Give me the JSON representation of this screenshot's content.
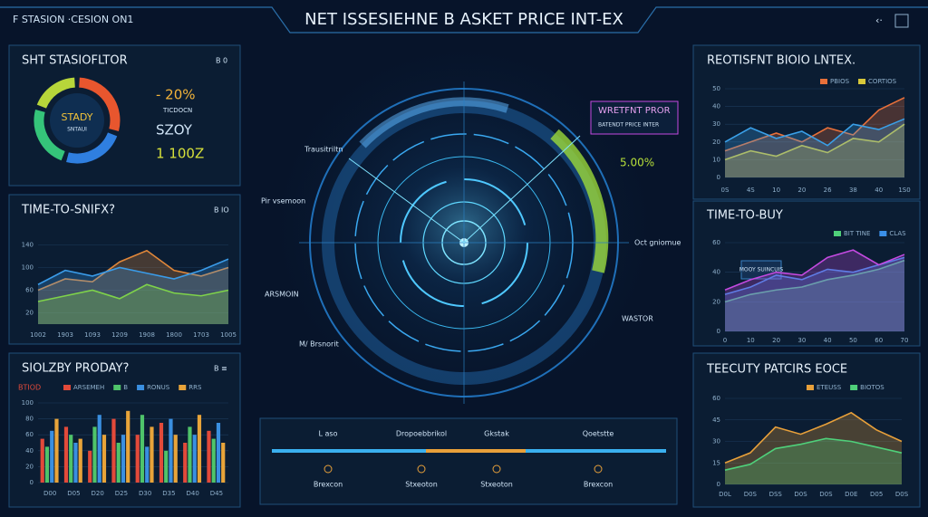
{
  "header": {
    "subtitle": "F STASION ·CESION ON1",
    "title": "NET ISSESIEHNE B ASKET PRICE INT-EX"
  },
  "panels": [
    {
      "title": "SHT STASIOFLTOR",
      "tag": "B 0",
      "chart": {
        "type": "donut",
        "center_label": "STADY",
        "center_sublabel": "SNTAUI",
        "values": [
          30,
          25,
          25,
          20
        ],
        "colors": [
          "#e8562e",
          "#2f7fe0",
          "#35c47a",
          "#b7d63a"
        ]
      },
      "stats": [
        "- 20%",
        "SZOY",
        "1 100Z"
      ],
      "caption": "TICDOCN"
    },
    {
      "title": "TIME-TO-SNIFX?",
      "tag": "B IO",
      "chart": {
        "type": "area",
        "categories": [
          "1002",
          "1903",
          "1093",
          "1209",
          "1908",
          "1800",
          "1703",
          "1005"
        ],
        "ylim": [
          0,
          160
        ],
        "yticks": [
          20,
          60,
          100,
          140
        ],
        "grid": true,
        "series": [
          {
            "color": "#e0873a",
            "values": [
              60,
              80,
              75,
              110,
              130,
              95,
              85,
              100
            ]
          },
          {
            "color": "#3a9be8",
            "values": [
              70,
              95,
              85,
              100,
              90,
              80,
              95,
              115
            ]
          },
          {
            "color": "#7fd34a",
            "values": [
              40,
              50,
              60,
              45,
              70,
              55,
              50,
              60
            ]
          }
        ]
      }
    },
    {
      "title": "SIOLZBY PRODAY?",
      "tag": "B ≡",
      "legend_title": "BTIOD",
      "chart": {
        "type": "bar",
        "categories": [
          "D00",
          "D05",
          "D20",
          "D25",
          "D30",
          "D35",
          "D40",
          "D45"
        ],
        "ylim": [
          0,
          100
        ],
        "yticks": [
          0,
          20,
          40,
          60,
          80,
          100
        ],
        "grid": true,
        "series": [
          {
            "name": "ARSEMEH",
            "color": "#e24a3a",
            "values": [
              55,
              70,
              40,
              80,
              60,
              75,
              50,
              65
            ]
          },
          {
            "name": "B",
            "color": "#4fc46a",
            "values": [
              45,
              60,
              70,
              50,
              85,
              40,
              70,
              55
            ]
          },
          {
            "name": "RONUS",
            "color": "#3a8fe0",
            "values": [
              65,
              50,
              85,
              60,
              45,
              80,
              60,
              75
            ]
          },
          {
            "name": "RRS",
            "color": "#e8a43a",
            "values": [
              80,
              55,
              60,
              90,
              70,
              60,
              85,
              50
            ]
          }
        ]
      }
    },
    {
      "title": "REOTISFNT BIOIO LNTEX.",
      "tag": "",
      "chart": {
        "type": "area",
        "categories": [
          "0S",
          "4S",
          "10",
          "20",
          "26",
          "38",
          "40",
          "1S0"
        ],
        "ylim": [
          0,
          50
        ],
        "yticks": [
          0,
          10,
          20,
          30,
          40,
          50
        ],
        "grid": true,
        "series": [
          {
            "name": "PBIOS",
            "color": "#e8703a",
            "values": [
              15,
              20,
              25,
              20,
              28,
              24,
              38,
              45
            ]
          },
          {
            "name": "CORTIOS",
            "color": "#d8c83a",
            "values": [
              10,
              15,
              12,
              18,
              14,
              22,
              20,
              30
            ]
          },
          {
            "color": "#3aa0e8",
            "values": [
              20,
              28,
              22,
              26,
              18,
              30,
              27,
              33
            ]
          }
        ]
      }
    },
    {
      "title": "TIME-TO-BUY",
      "tag": "",
      "annotation": "MOOY SUINCUIS",
      "chart": {
        "type": "area",
        "categories": [
          "0",
          "10",
          "20",
          "30",
          "40",
          "50",
          "60",
          "70"
        ],
        "ylim": [
          0,
          60
        ],
        "yticks": [
          0,
          20,
          40,
          60
        ],
        "grid": true,
        "series": [
          {
            "name": "BIT TINE",
            "color": "#4fd07a",
            "values": [
              20,
              25,
              28,
              30,
              35,
              38,
              42,
              48
            ]
          },
          {
            "name": "CLAS",
            "color": "#3a8fe8",
            "values": [
              25,
              30,
              38,
              35,
              42,
              40,
              45,
              50
            ]
          },
          {
            "color": "#c34ae0",
            "values": [
              28,
              35,
              40,
              38,
              50,
              55,
              45,
              52
            ]
          }
        ]
      }
    },
    {
      "title": "TEECUTY PATCIRS EOCE",
      "tag": "",
      "chart": {
        "type": "area",
        "categories": [
          "D0L",
          "D0S",
          "DSS",
          "D0S",
          "D0S",
          "D0E",
          "D05",
          "D0S"
        ],
        "ylim": [
          0,
          60
        ],
        "yticks": [
          0,
          15,
          30,
          45,
          60
        ],
        "grid": true,
        "series": [
          {
            "name": "ETEUSS",
            "color": "#e8a03a",
            "values": [
              15,
              22,
              40,
              35,
              42,
              50,
              38,
              30
            ]
          },
          {
            "name": "BIOTOS",
            "color": "#4fd07a",
            "values": [
              10,
              14,
              25,
              28,
              32,
              30,
              26,
              22
            ]
          }
        ]
      }
    }
  ],
  "center": {
    "callouts": [
      "WRETFNT PROR",
      "BATENDT PRICE INTER",
      "Trausitriltn",
      "Pir vsemoon",
      "ARSMOIN",
      "M/ Brsnorit",
      "5.00%",
      "Oct gniomue",
      "WASTOR"
    ],
    "timeline": [
      {
        "label": "L aso",
        "sublabel": "Brexcon"
      },
      {
        "label": "Dropoebbrikol",
        "sublabel": "Stxeoton"
      },
      {
        "label": "Gkstak",
        "sublabel": "Stxeoton"
      },
      {
        "label": "Qoetstte",
        "sublabel": "Brexcon"
      }
    ]
  }
}
